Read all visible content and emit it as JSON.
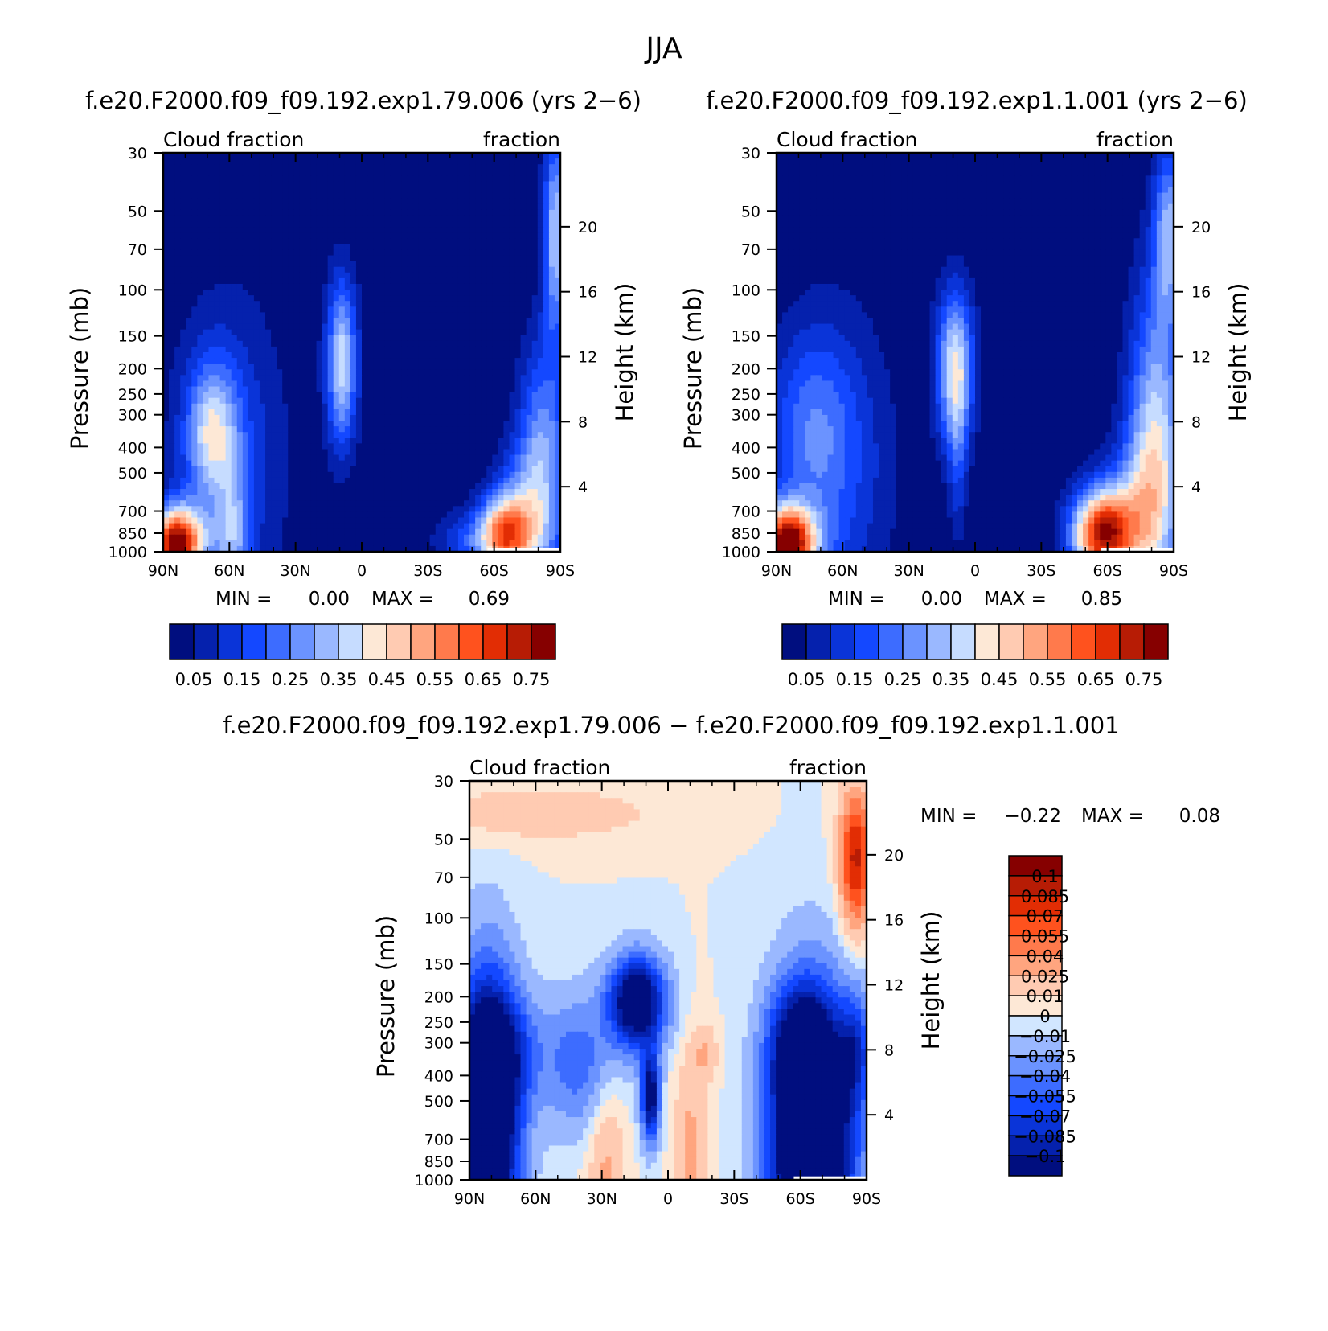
{
  "figure": {
    "title": "JJA"
  },
  "colors": {
    "full_scale": [
      "#000e7f",
      "#0521ad",
      "#0a34d8",
      "#1448ff",
      "#3d6cff",
      "#6b93ff",
      "#9ab8ff",
      "#c6dcff",
      "#fde8d6",
      "#ffcbb2",
      "#ffa57f",
      "#ff7a4c",
      "#ff521e",
      "#e22d04",
      "#b71c05",
      "#860000"
    ],
    "diff_scale": [
      "#000e7f",
      "#0521ad",
      "#0a34d8",
      "#1448ff",
      "#3d6cff",
      "#6b93ff",
      "#9ab8ff",
      "#d1e6ff",
      "#fde8d6",
      "#ffcbb2",
      "#ffa57f",
      "#ff7a4c",
      "#ff521e",
      "#e22d04",
      "#b71c05",
      "#860000"
    ]
  },
  "chart_data": [
    {
      "id": "panel_a",
      "type": "heatmap",
      "title": "f.e20.F2000.f09_f09.192.exp1.79.006 (yrs 2−6)",
      "left_subtitle": "Cloud fraction",
      "right_subtitle": "fraction",
      "xlabel": "",
      "ylabel": "Pressure (mb)",
      "y2label": "Height (km)",
      "x_ticks": [
        "90N",
        "60N",
        "30N",
        "0",
        "30S",
        "60S",
        "90S"
      ],
      "x_values": [
        90,
        60,
        30,
        0,
        -30,
        -60,
        -90
      ],
      "y_ticks": [
        "30",
        "50",
        "70",
        "100",
        "150",
        "200",
        "250",
        "300",
        "400",
        "500",
        "700",
        "850",
        "1000"
      ],
      "y_values": [
        30,
        50,
        70,
        100,
        150,
        200,
        250,
        300,
        400,
        500,
        700,
        850,
        1000
      ],
      "y2_ticks": [
        "20",
        "16",
        "12",
        "8",
        "4"
      ],
      "y2_values": [
        20,
        16,
        12,
        8,
        4
      ],
      "ylim": [
        30,
        1000
      ],
      "xlim": [
        90,
        -90
      ],
      "min_label": "MIN =",
      "min_value": "0.00",
      "max_label": "MAX =",
      "max_value": "0.69",
      "colorbar_labels": [
        "0.05",
        "0.15",
        "0.25",
        "0.35",
        "0.45",
        "0.55",
        "0.65",
        "0.75"
      ],
      "contour_levels": [
        0.05,
        0.1,
        0.15,
        0.2,
        0.25,
        0.3,
        0.35,
        0.4,
        0.45,
        0.5,
        0.55,
        0.6,
        0.65,
        0.7,
        0.75
      ],
      "blobs": [
        {
          "lat": -65,
          "p": 875,
          "amp": 0.58,
          "wlat": 9,
          "wz": 0.07
        },
        {
          "lat": -82,
          "p": 500,
          "amp": 0.32,
          "wlat": 8,
          "wz": 0.22
        },
        {
          "lat": -88,
          "p": 60,
          "amp": 0.35,
          "wlat": 4,
          "wz": 0.18
        },
        {
          "lat": -70,
          "p": 600,
          "amp": 0.12,
          "wlat": 8,
          "wz": 0.1
        },
        {
          "lat": 85,
          "p": 980,
          "amp": 0.58,
          "wlat": 7,
          "wz": 0.07
        },
        {
          "lat": 80,
          "p": 900,
          "amp": 0.25,
          "wlat": 10,
          "wz": 0.06
        },
        {
          "lat": 9,
          "p": 190,
          "amp": 0.38,
          "wlat": 5,
          "wz": 0.15
        },
        {
          "lat": 68,
          "p": 350,
          "amp": 0.3,
          "wlat": 8,
          "wz": 0.12
        },
        {
          "lat": 60,
          "p": 450,
          "amp": 0.15,
          "wlat": 18,
          "wz": 0.3
        },
        {
          "lat": 58,
          "p": 920,
          "amp": 0.2,
          "wlat": 5,
          "wz": 0.14
        },
        {
          "lat": -45,
          "p": 900,
          "amp": 0.12,
          "wlat": 10,
          "wz": 0.05
        }
      ]
    },
    {
      "id": "panel_b",
      "type": "heatmap",
      "title": "f.e20.F2000.f09_f09.192.exp1.1.001 (yrs 2−6)",
      "left_subtitle": "Cloud fraction",
      "right_subtitle": "fraction",
      "xlabel": "",
      "ylabel": "Pressure (mb)",
      "y2label": "Height (km)",
      "x_ticks": [
        "90N",
        "60N",
        "30N",
        "0",
        "30S",
        "60S",
        "90S"
      ],
      "x_values": [
        90,
        60,
        30,
        0,
        -30,
        -60,
        -90
      ],
      "y_ticks": [
        "30",
        "50",
        "70",
        "100",
        "150",
        "200",
        "250",
        "300",
        "400",
        "500",
        "700",
        "850",
        "1000"
      ],
      "y_values": [
        30,
        50,
        70,
        100,
        150,
        200,
        250,
        300,
        400,
        500,
        700,
        850,
        1000
      ],
      "y2_ticks": [
        "20",
        "16",
        "12",
        "8",
        "4"
      ],
      "y2_values": [
        20,
        16,
        12,
        8,
        4
      ],
      "ylim": [
        30,
        1000
      ],
      "xlim": [
        90,
        -90
      ],
      "min_label": "MIN =",
      "min_value": "0.00",
      "max_label": "MAX =",
      "max_value": "0.85",
      "colorbar_labels": [
        "0.05",
        "0.15",
        "0.25",
        "0.35",
        "0.45",
        "0.55",
        "0.65",
        "0.75"
      ],
      "contour_levels": [
        0.05,
        0.1,
        0.15,
        0.2,
        0.25,
        0.3,
        0.35,
        0.4,
        0.45,
        0.5,
        0.55,
        0.6,
        0.65,
        0.7,
        0.75
      ],
      "blobs": [
        {
          "lat": -58,
          "p": 860,
          "amp": 0.72,
          "wlat": 10,
          "wz": 0.08
        },
        {
          "lat": -82,
          "p": 450,
          "amp": 0.4,
          "wlat": 9,
          "wz": 0.3
        },
        {
          "lat": -88,
          "p": 60,
          "amp": 0.3,
          "wlat": 5,
          "wz": 0.15
        },
        {
          "lat": -72,
          "p": 650,
          "amp": 0.15,
          "wlat": 10,
          "wz": 0.12
        },
        {
          "lat": 86,
          "p": 980,
          "amp": 0.65,
          "wlat": 7,
          "wz": 0.07
        },
        {
          "lat": 80,
          "p": 900,
          "amp": 0.25,
          "wlat": 10,
          "wz": 0.06
        },
        {
          "lat": 9,
          "p": 200,
          "amp": 0.4,
          "wlat": 6,
          "wz": 0.14
        },
        {
          "lat": 8,
          "p": 450,
          "amp": 0.12,
          "wlat": 3,
          "wz": 0.15
        },
        {
          "lat": 75,
          "p": 350,
          "amp": 0.18,
          "wlat": 14,
          "wz": 0.18
        },
        {
          "lat": 60,
          "p": 500,
          "amp": 0.12,
          "wlat": 18,
          "wz": 0.3
        }
      ]
    },
    {
      "id": "panel_diff",
      "type": "heatmap",
      "title": "f.e20.F2000.f09_f09.192.exp1.79.006 − f.e20.F2000.f09_f09.192.exp1.1.001",
      "left_subtitle": "Cloud fraction",
      "right_subtitle": "fraction",
      "xlabel": "",
      "ylabel": "Pressure (mb)",
      "y2label": "Height (km)",
      "x_ticks": [
        "90N",
        "60N",
        "30N",
        "0",
        "30S",
        "60S",
        "90S"
      ],
      "x_values": [
        90,
        60,
        30,
        0,
        -30,
        -60,
        -90
      ],
      "y_ticks": [
        "30",
        "50",
        "70",
        "100",
        "150",
        "200",
        "250",
        "300",
        "400",
        "500",
        "700",
        "850",
        "1000"
      ],
      "y_values": [
        30,
        50,
        70,
        100,
        150,
        200,
        250,
        300,
        400,
        500,
        700,
        850,
        1000
      ],
      "y2_ticks": [
        "20",
        "16",
        "12",
        "8",
        "4"
      ],
      "y2_values": [
        20,
        16,
        12,
        8,
        4
      ],
      "ylim": [
        30,
        1000
      ],
      "xlim": [
        90,
        -90
      ],
      "min_label": "MIN =",
      "min_value": "−0.22",
      "max_label": "MAX =",
      "max_value": "0.08",
      "colorbar_labels": [
        "0.1",
        "0.085",
        "0.07",
        "0.055",
        "0.04",
        "0.025",
        "0.01",
        "0",
        "−0.01",
        "−0.025",
        "−0.04",
        "−0.055",
        "−0.07",
        "−0.085",
        "−0.1"
      ],
      "contour_levels": [
        -0.1,
        -0.085,
        -0.07,
        -0.055,
        -0.04,
        -0.025,
        -0.01,
        0,
        0.01,
        0.025,
        0.04,
        0.055,
        0.07,
        0.085,
        0.1
      ],
      "blobs": [
        {
          "lat": -65,
          "p": 750,
          "amp": -0.2,
          "wlat": 13,
          "wz": 0.25
        },
        {
          "lat": 82,
          "p": 600,
          "amp": -0.18,
          "wlat": 10,
          "wz": 0.25
        },
        {
          "lat": 14,
          "p": 210,
          "amp": -0.14,
          "wlat": 9,
          "wz": 0.08
        },
        {
          "lat": 8,
          "p": 480,
          "amp": -0.12,
          "wlat": 3,
          "wz": 0.08
        },
        {
          "lat": -85,
          "p": 60,
          "amp": 0.09,
          "wlat": 5,
          "wz": 0.12
        },
        {
          "lat": -60,
          "p": 300,
          "amp": -0.07,
          "wlat": 10,
          "wz": 0.1
        },
        {
          "lat": -85,
          "p": 320,
          "amp": -0.06,
          "wlat": 5,
          "wz": 0.1
        },
        {
          "lat": 40,
          "p": 360,
          "amp": -0.05,
          "wlat": 12,
          "wz": 0.12
        },
        {
          "lat": 75,
          "p": 320,
          "amp": -0.05,
          "wlat": 12,
          "wz": 0.1
        },
        {
          "lat": 28,
          "p": 800,
          "amp": 0.03,
          "wlat": 6,
          "wz": 0.18
        },
        {
          "lat": -10,
          "p": 800,
          "amp": 0.03,
          "wlat": 5,
          "wz": 0.18
        },
        {
          "lat": -17,
          "p": 330,
          "amp": 0.025,
          "wlat": 4,
          "wz": 0.05
        },
        {
          "lat": 60,
          "p": 40,
          "amp": 0.02,
          "wlat": 40,
          "wz": 0.05
        }
      ]
    }
  ]
}
